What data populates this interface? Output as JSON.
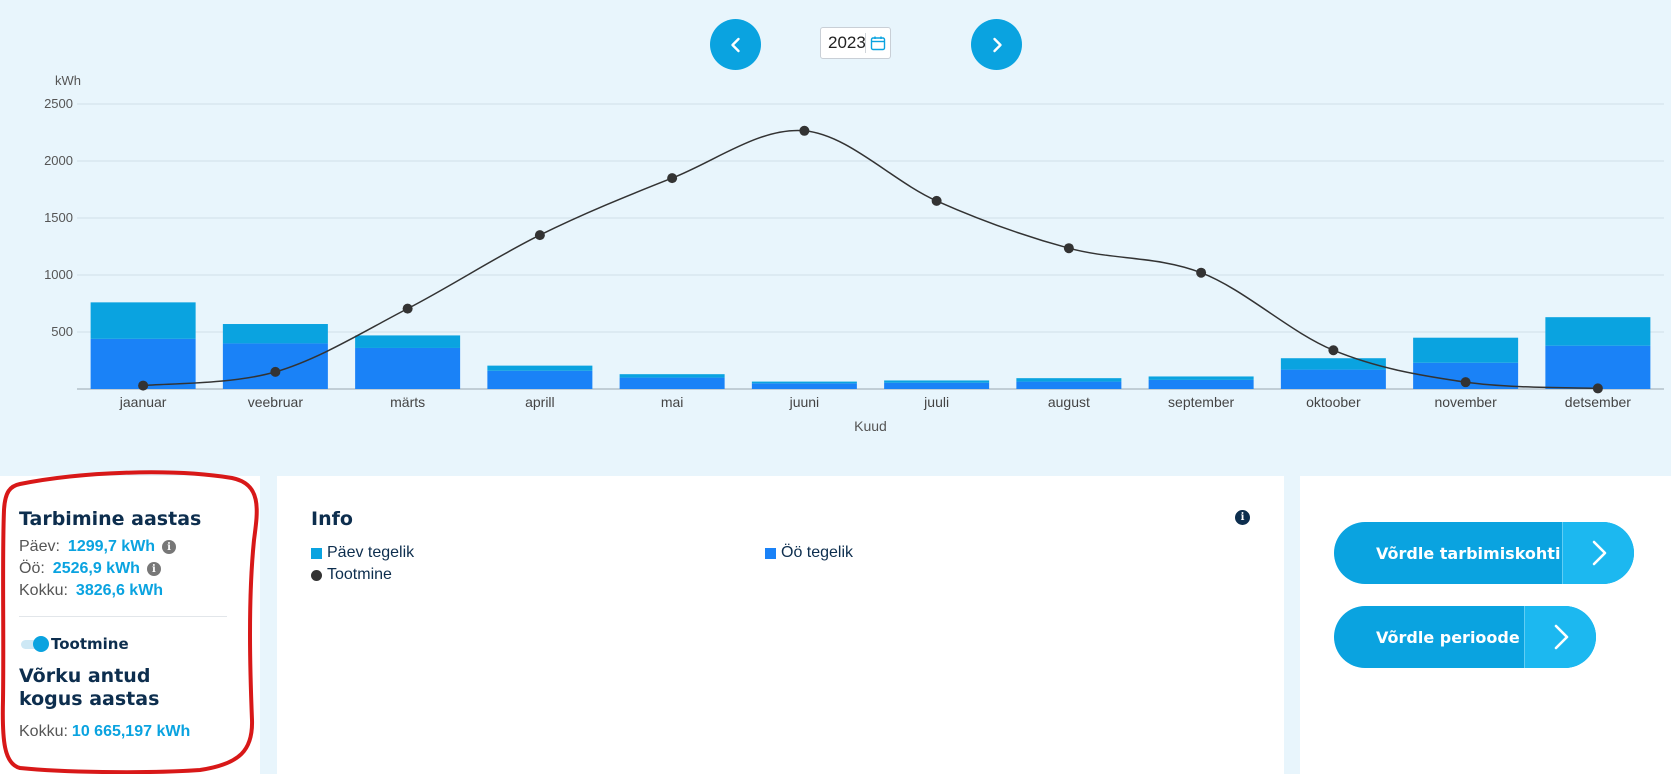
{
  "year_picker": {
    "year": "2023"
  },
  "icons": {
    "prev": "chevron-left-icon",
    "next": "chevron-right-icon",
    "calendar": "calendar-icon",
    "info": "info-icon"
  },
  "colors": {
    "day": "#0aa3e0",
    "night": "#1a82f7",
    "production": "#333333",
    "accent": "#0aa3e0"
  },
  "chart_data": {
    "type": "bar",
    "ylabel": "kWh",
    "xlabel": "Kuud",
    "ylim": [
      0,
      2500
    ],
    "yticks": [
      500,
      1000,
      1500,
      2000,
      2500
    ],
    "categories": [
      "jaanuar",
      "veebruar",
      "märts",
      "aprill",
      "mai",
      "juuni",
      "juuli",
      "august",
      "september",
      "oktoober",
      "november",
      "detsember"
    ],
    "series": [
      {
        "name": "Öö tegelik",
        "kind": "bar",
        "values": [
          440,
          400,
          360,
          160,
          100,
          50,
          55,
          65,
          80,
          170,
          230,
          380
        ]
      },
      {
        "name": "Päev tegelik",
        "kind": "bar",
        "values": [
          320,
          170,
          110,
          45,
          30,
          15,
          20,
          30,
          30,
          100,
          220,
          250
        ]
      },
      {
        "name": "Tootmine",
        "kind": "line",
        "values": [
          30,
          150,
          705,
          1350,
          1850,
          2265,
          1650,
          1235,
          1020,
          340,
          60,
          5
        ]
      }
    ],
    "grid": true,
    "legend_placement": "bottom-panel"
  },
  "left_panel": {
    "title": "Tarbimine aastas",
    "rows": [
      {
        "label": "Päev:",
        "value": "1299,7 kWh"
      },
      {
        "label": "Öö:",
        "value": "2526,9 kWh"
      },
      {
        "label": "Kokku:",
        "value": "3826,6 kWh"
      }
    ],
    "toggle_label": "Tootmine",
    "production_title": "Võrku antud kogus aastas",
    "production_total_label": "Kokku:",
    "production_total_value": "10 665,197 kWh"
  },
  "info_panel": {
    "title": "Info",
    "legend": {
      "day": "Päev tegelik",
      "night": "Öö tegelik",
      "production": "Tootmine"
    }
  },
  "right_panel": {
    "compare_locations": "Võrdle tarbimiskohti",
    "compare_periods": "Võrdle perioode"
  }
}
